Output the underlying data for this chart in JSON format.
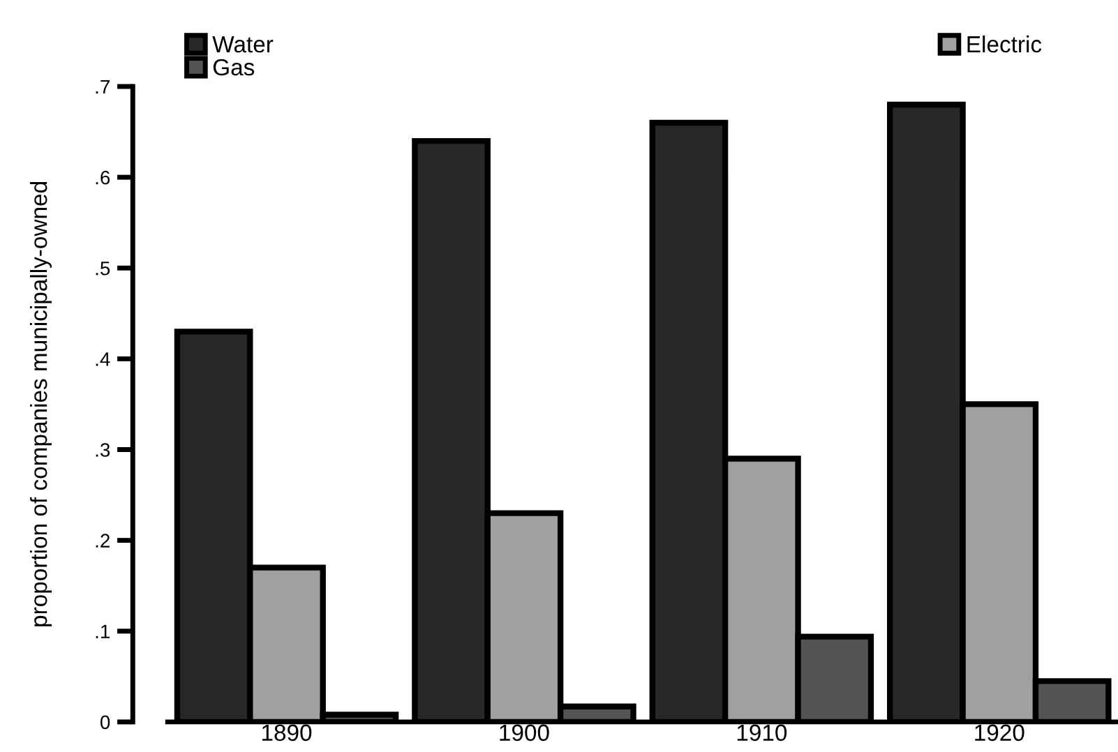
{
  "chart_data": {
    "type": "bar",
    "ylabel": "proportion of companies municipally-owned",
    "categories": [
      "1890",
      "1900",
      "1910",
      "1920"
    ],
    "series": [
      {
        "name": "Water",
        "color": "#282828",
        "values": [
          0.43,
          0.64,
          0.66,
          0.68
        ]
      },
      {
        "name": "Electric",
        "color": "#a0a0a0",
        "values": [
          0.17,
          0.23,
          0.29,
          0.35
        ]
      },
      {
        "name": "Gas",
        "color": "#545454",
        "values": [
          0.008,
          0.017,
          0.094,
          0.045
        ]
      }
    ],
    "ylim": [
      0,
      0.7
    ],
    "yticks": [
      0,
      {
        "value": 0.1,
        "label": ".1"
      },
      {
        "value": 0.2,
        "label": ".2"
      },
      {
        "value": 0.3,
        "label": ".3"
      },
      {
        "value": 0.4,
        "label": ".4"
      },
      {
        "value": 0.5,
        "label": ".5"
      },
      {
        "value": 0.6,
        "label": ".6"
      },
      {
        "value": 0.7,
        "label": ".7"
      }
    ],
    "grid": false,
    "legend": "top"
  }
}
